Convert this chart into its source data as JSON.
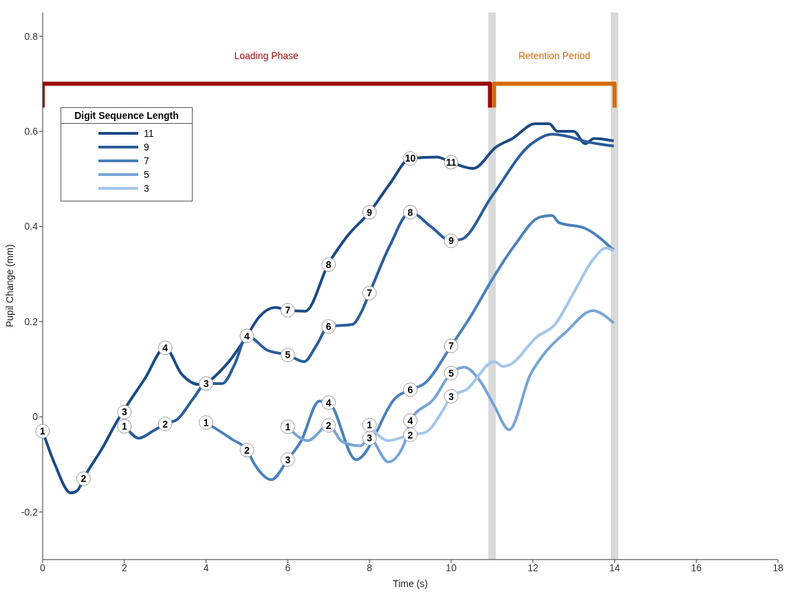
{
  "chart_data": {
    "type": "line",
    "xlabel": "Time (s)",
    "ylabel": "Pupil Change (mm)",
    "legend_title": "Digit Sequence Length",
    "legend": "top left",
    "grid": false,
    "marker": "none",
    "line_style": "solid",
    "xlim": [
      0,
      18
    ],
    "xticks": [
      0,
      2,
      4,
      6,
      8,
      10,
      12,
      14,
      16,
      18
    ],
    "ylim": [
      -0.3,
      0.85
    ],
    "yticks": [
      -0.2,
      0,
      0.2,
      0.4,
      0.6,
      0.8
    ],
    "series": [
      {
        "name": "11",
        "color": "#1b4a85",
        "x": [
          0,
          0.3,
          0.69,
          0.85,
          1,
          1.5,
          1.75,
          2.5,
          3,
          3.4,
          3.83,
          4.5,
          5,
          5.3,
          5.7,
          6,
          6.43,
          7,
          7.45,
          8,
          8.5,
          9,
          9.65,
          10,
          10.54,
          11.1,
          11.5,
          12.06,
          12.4,
          12.6,
          13,
          13.28,
          13.5,
          13.98
        ],
        "values": [
          -0.03,
          -0.1,
          -0.16,
          -0.155,
          -0.13,
          -0.06,
          -0.02,
          0.08,
          0.145,
          0.09,
          0.068,
          0.11,
          0.17,
          0.21,
          0.23,
          0.224,
          0.222,
          0.322,
          0.379,
          0.43,
          0.49,
          0.543,
          0.546,
          0.535,
          0.522,
          0.567,
          0.585,
          0.616,
          0.616,
          0.6,
          0.6,
          0.574,
          0.585,
          0.58
        ]
      },
      {
        "name": "9",
        "color": "#2a5d9a",
        "x": [
          2.12,
          2.35,
          2.7,
          3,
          3.3,
          3.7,
          4,
          4.4,
          4.7,
          5,
          5.5,
          6,
          6.4,
          6.7,
          7,
          7.58,
          7.8,
          8,
          8.5,
          9,
          9.5,
          10,
          10.25,
          11,
          11.94,
          12.47,
          12.87,
          13.28,
          13.98
        ],
        "values": [
          -0.03,
          -0.045,
          -0.03,
          -0.015,
          -0.005,
          0.04,
          0.07,
          0.07,
          0.11,
          0.17,
          0.14,
          0.13,
          0.116,
          0.15,
          0.19,
          0.194,
          0.22,
          0.26,
          0.36,
          0.43,
          0.4,
          0.37,
          0.373,
          0.464,
          0.572,
          0.594,
          0.589,
          0.579,
          0.569
        ]
      },
      {
        "name": "7",
        "color": "#4b80bb",
        "x": [
          4,
          4.63,
          5,
          5.19,
          5.6,
          6,
          6.32,
          6.77,
          7,
          7.67,
          8.68,
          9,
          9.36,
          10,
          10.49,
          10.95,
          11.54,
          12.18,
          12.47,
          12.64,
          13.28,
          13.98
        ],
        "values": [
          -0.012,
          -0.047,
          -0.07,
          -0.1,
          -0.132,
          -0.09,
          -0.052,
          0.033,
          0.03,
          -0.09,
          0.043,
          0.057,
          0.071,
          0.149,
          0.213,
          0.281,
          0.359,
          0.42,
          0.423,
          0.408,
          0.396,
          0.35
        ]
      },
      {
        "name": "5",
        "color": "#76a4d5",
        "x": [
          6,
          6.49,
          7,
          7.33,
          7.78,
          8,
          8.46,
          8.85,
          9,
          9.58,
          10,
          10.32,
          10.71,
          11.05,
          11.42,
          11.94,
          12.3,
          12.82,
          13.46,
          13.98
        ],
        "values": [
          -0.021,
          -0.05,
          -0.018,
          -0.052,
          -0.061,
          -0.045,
          -0.095,
          -0.057,
          -0.008,
          0.038,
          0.092,
          0.104,
          0.075,
          0.024,
          -0.027,
          0.089,
          0.135,
          0.179,
          0.223,
          0.197
        ]
      },
      {
        "name": "Loading Phase",
        "type": "step",
        "color": "#9b0a0a",
        "x": [
          0,
          0,
          10.95,
          10.95
        ],
        "values": [
          0.65,
          0.7,
          0.7,
          0.65
        ]
      },
      {
        "name": "Retention Period",
        "type": "step",
        "color": "#d46b08",
        "x": [
          11.05,
          11.05,
          14,
          14
        ],
        "values": [
          0.65,
          0.7,
          0.7,
          0.65
        ]
      },
      {
        "name": "3",
        "color": "#a3c6ea",
        "x": [
          8,
          8.46,
          9,
          9.36,
          9.8,
          10,
          10.37,
          11.05,
          11.27,
          11.42,
          12.11,
          12.53,
          13,
          13.46,
          13.8,
          13.98
        ],
        "values": [
          -0.017,
          -0.05,
          -0.038,
          -0.033,
          0.014,
          0.043,
          0.057,
          0.116,
          0.106,
          0.109,
          0.169,
          0.193,
          0.261,
          0.329,
          0.355,
          0.349
        ]
      }
    ],
    "ref_lines": [
      {
        "axis": "x",
        "value": 11,
        "color": "#d9d9d9"
      },
      {
        "axis": "x",
        "value": 14,
        "color": "#d9d9d9"
      }
    ],
    "annotations": [
      {
        "text": "1",
        "x": 0,
        "y": -0.03
      },
      {
        "text": "2",
        "x": 1,
        "y": -0.13
      },
      {
        "text": "3",
        "x": 2,
        "y": 0.01
      },
      {
        "text": "4",
        "x": 3,
        "y": 0.145
      },
      {
        "text": "7",
        "x": 6,
        "y": 0.224
      },
      {
        "text": "8",
        "x": 7,
        "y": 0.32
      },
      {
        "text": "9",
        "x": 8,
        "y": 0.43
      },
      {
        "text": "10",
        "x": 9,
        "y": 0.543
      },
      {
        "text": "11",
        "x": 10,
        "y": 0.535
      },
      {
        "text": "1",
        "x": 2,
        "y": -0.02
      },
      {
        "text": "2",
        "x": 3,
        "y": -0.015
      },
      {
        "text": "3",
        "x": 4,
        "y": 0.07
      },
      {
        "text": "4",
        "x": 5,
        "y": 0.17
      },
      {
        "text": "5",
        "x": 6,
        "y": 0.13
      },
      {
        "text": "6",
        "x": 7,
        "y": 0.19
      },
      {
        "text": "7",
        "x": 8,
        "y": 0.26
      },
      {
        "text": "8",
        "x": 9,
        "y": 0.43
      },
      {
        "text": "9",
        "x": 10,
        "y": 0.37
      },
      {
        "text": "1",
        "x": 4,
        "y": -0.012
      },
      {
        "text": "2",
        "x": 5,
        "y": -0.07
      },
      {
        "text": "3",
        "x": 6,
        "y": -0.09
      },
      {
        "text": "4",
        "x": 7,
        "y": 0.03
      },
      {
        "text": "6",
        "x": 9,
        "y": 0.057
      },
      {
        "text": "7",
        "x": 10,
        "y": 0.149
      },
      {
        "text": "1",
        "x": 6,
        "y": -0.021
      },
      {
        "text": "2",
        "x": 7,
        "y": -0.018
      },
      {
        "text": "3",
        "x": 8,
        "y": -0.045
      },
      {
        "text": "4",
        "x": 9,
        "y": -0.008
      },
      {
        "text": "5",
        "x": 10,
        "y": 0.092
      },
      {
        "text": "1",
        "x": 8,
        "y": -0.017
      },
      {
        "text": "2",
        "x": 9,
        "y": -0.038
      },
      {
        "text": "3",
        "x": 10,
        "y": 0.043
      }
    ]
  }
}
